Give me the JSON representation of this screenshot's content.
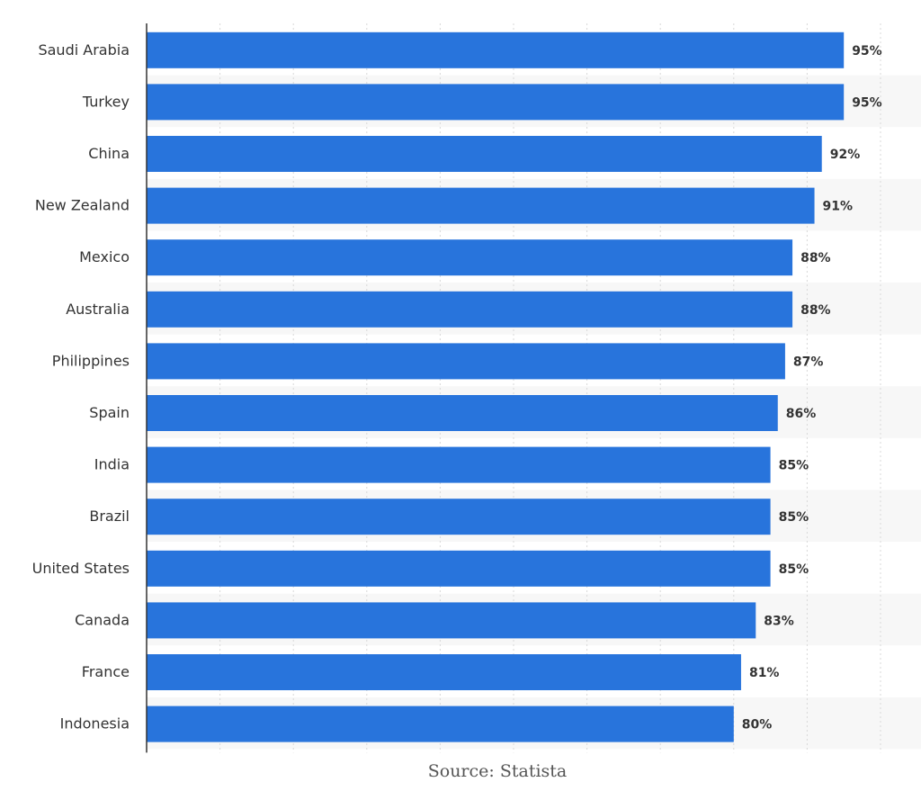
{
  "chart_data": {
    "type": "bar",
    "orientation": "horizontal",
    "categories": [
      "Saudi Arabia",
      "Turkey",
      "China",
      "New Zealand",
      "Mexico",
      "Australia",
      "Philippines",
      "Spain",
      "India",
      "Brazil",
      "United States",
      "Canada",
      "France",
      "Indonesia"
    ],
    "values": [
      95,
      95,
      92,
      91,
      88,
      88,
      87,
      86,
      85,
      85,
      85,
      83,
      81,
      80
    ],
    "data_labels": [
      "95%",
      "95%",
      "92%",
      "91%",
      "88%",
      "88%",
      "87%",
      "86%",
      "85%",
      "85%",
      "85%",
      "83%",
      "81%",
      "80%"
    ],
    "xlim": [
      0,
      100
    ],
    "x_gridlines": [
      0,
      10,
      20,
      30,
      40,
      50,
      60,
      70,
      80,
      90,
      100
    ],
    "grid": true,
    "x_tick_labels_shown": false,
    "bar_color": "#2874dc",
    "title": "",
    "xlabel": "",
    "ylabel": ""
  },
  "source": "Source: Statista"
}
